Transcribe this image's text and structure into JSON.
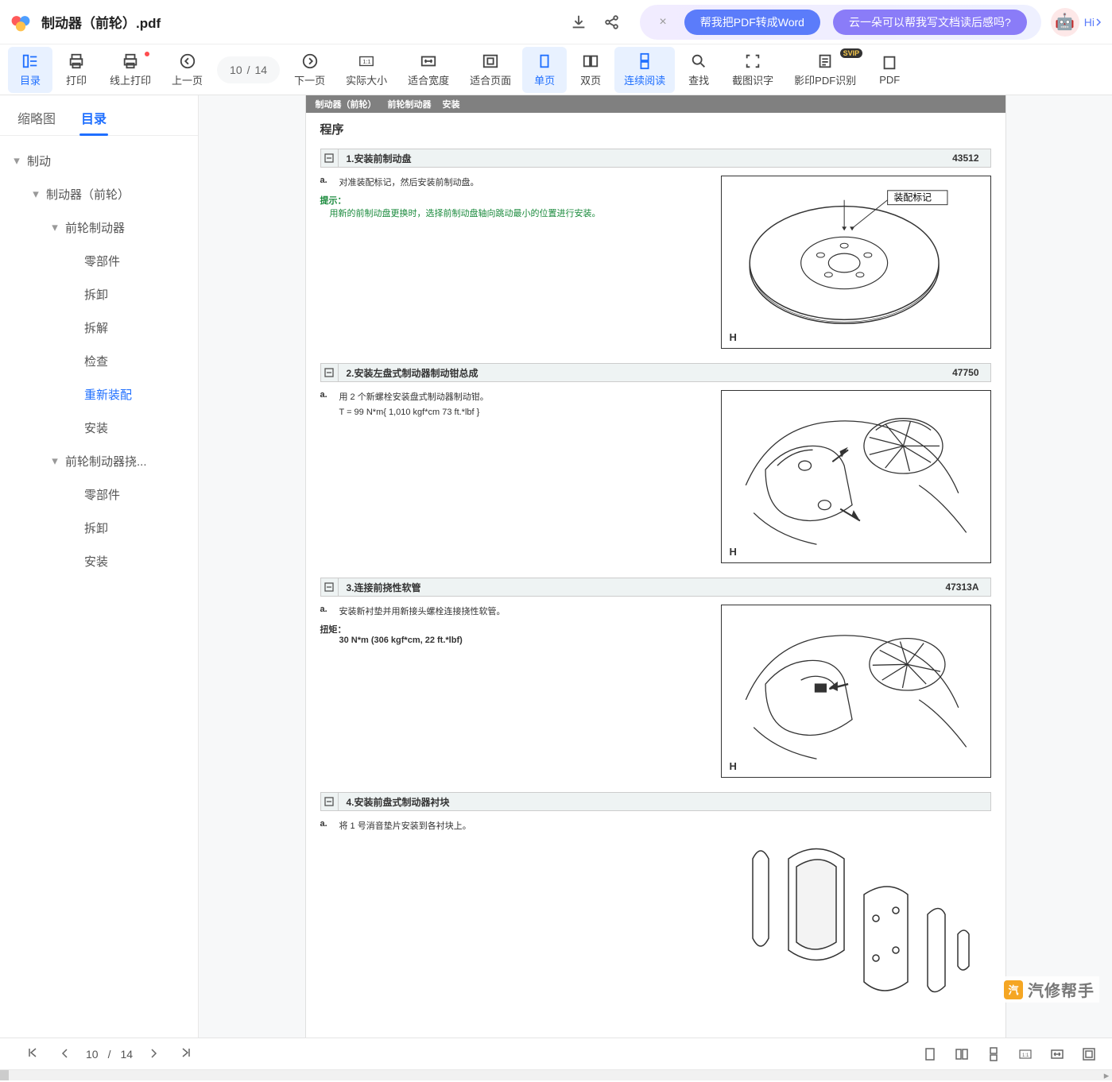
{
  "header": {
    "doc_title": "制动器（前轮）.pdf",
    "banner": {
      "pill1": "帮我把PDF转成Word",
      "pill2": "云一朵可以帮我写文档读后感吗?",
      "hi_label": "Hi"
    }
  },
  "toolbar": {
    "items": [
      {
        "id": "toc",
        "label": "目录",
        "active": true
      },
      {
        "id": "print",
        "label": "打印"
      },
      {
        "id": "print-on",
        "label": "线上打印",
        "dot": true
      },
      {
        "id": "prev",
        "label": "上一页"
      },
      {
        "id": "page",
        "label": "",
        "is_page": true
      },
      {
        "id": "next",
        "label": "下一页"
      },
      {
        "id": "actual",
        "label": "实际大小"
      },
      {
        "id": "fit-w",
        "label": "适合宽度"
      },
      {
        "id": "fit-p",
        "label": "适合页面"
      },
      {
        "id": "single",
        "label": "单页",
        "active": true
      },
      {
        "id": "double",
        "label": "双页"
      },
      {
        "id": "continuous",
        "label": "连续阅读",
        "active": true
      },
      {
        "id": "find",
        "label": "查找"
      },
      {
        "id": "ocr-crop",
        "label": "截图识字"
      },
      {
        "id": "ocr-scan",
        "label": "影印PDF识别",
        "svip": true
      },
      {
        "id": "pdf-extra",
        "label": "PDF"
      }
    ],
    "page_current": "10",
    "page_sep": "/",
    "page_total": "14"
  },
  "sidebar": {
    "tabs": [
      {
        "label": "缩略图",
        "active": false
      },
      {
        "label": "目录",
        "active": true
      }
    ],
    "tree": [
      {
        "indent": 0,
        "chevron": true,
        "label": "制动"
      },
      {
        "indent": 1,
        "chevron": true,
        "label": "制动器（前轮）"
      },
      {
        "indent": 2,
        "chevron": true,
        "label": "前轮制动器"
      },
      {
        "indent": 3,
        "chevron": false,
        "label": "零部件"
      },
      {
        "indent": 3,
        "chevron": false,
        "label": "拆卸"
      },
      {
        "indent": 3,
        "chevron": false,
        "label": "拆解"
      },
      {
        "indent": 3,
        "chevron": false,
        "label": "检查"
      },
      {
        "indent": 3,
        "chevron": false,
        "label": "重新装配",
        "selected": true
      },
      {
        "indent": 3,
        "chevron": false,
        "label": "安装"
      },
      {
        "indent": 2,
        "chevron": true,
        "label": "前轮制动器挠..."
      },
      {
        "indent": 3,
        "chevron": false,
        "label": "零部件"
      },
      {
        "indent": 3,
        "chevron": false,
        "label": "拆卸"
      },
      {
        "indent": 3,
        "chevron": false,
        "label": "安装"
      }
    ]
  },
  "document": {
    "breadcrumb": [
      "制动器（前轮）",
      "前轮制动器",
      "安装"
    ],
    "procedure_title": "程序",
    "steps": [
      {
        "num": "1.",
        "title": "安装前制动盘",
        "code": "43512",
        "letter": "a.",
        "body": "对准装配标记，然后安装前制动盘。",
        "tip_label": "提示：",
        "tip_text": "用新的前制动盘更换时，选择前制动盘轴向跳动最小的位置进行安装。",
        "figure": {
          "type": "rotor",
          "label": "装配标记",
          "h": "H"
        }
      },
      {
        "num": "2.",
        "title": "安装左盘式制动器制动钳总成",
        "code": "47750",
        "letter": "a.",
        "body": "用 2 个新螺栓安装盘式制动器制动钳。",
        "torque_line": "T = 99 N*m{ 1,010 kgf*cm 73 ft.*lbf }",
        "figure": {
          "type": "caliper",
          "h": "H"
        }
      },
      {
        "num": "3.",
        "title": "连接前挠性软管",
        "code": "47313A",
        "letter": "a.",
        "body": "安装新衬垫并用新接头螺栓连接挠性软管。",
        "torque_label": "扭矩：",
        "torque_val": "30 N*m (306 kgf*cm, 22 ft.*lbf)",
        "figure": {
          "type": "hose",
          "h": "H"
        }
      },
      {
        "num": "4.",
        "title": "安装前盘式制动器衬块",
        "code": "",
        "letter": "a.",
        "body": "将 1 号消音垫片安装到各衬块上。",
        "figure": {
          "type": "pads"
        }
      }
    ]
  },
  "bottombar": {
    "page_current": "10",
    "page_sep": "/",
    "page_total": "14"
  },
  "watermark": {
    "brand": "汽修帮手"
  },
  "colors": {
    "primary_blue": "#1f6fff",
    "active_bg": "#e8f1ff",
    "step_header_bg": "#eef3f3",
    "doc_strip_bg": "#808080",
    "tip_green": "#1a8a3c",
    "pill_blue": "#5b7cfa",
    "pill_purple": "#8a7cf8",
    "banner_grad_a": "#f1ecff",
    "banner_grad_b": "#eef0ff",
    "red_dot": "#ff4d4f",
    "svip_bg": "#333333",
    "svip_fg": "#f6c84c",
    "watermark_orange": "#f5a623",
    "logo_red": "#ff5a5a",
    "logo_blue": "#4e9eff",
    "logo_yellow": "#ffc24e"
  }
}
